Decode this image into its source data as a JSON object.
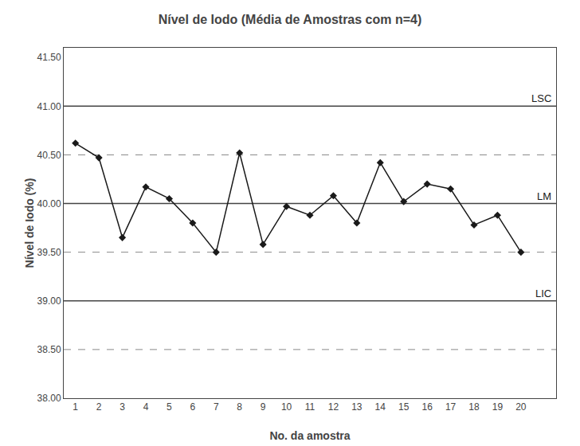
{
  "chart_data": {
    "type": "line",
    "title": "Nível de Iodo (Média de Amostras com n=4)",
    "xlabel": "No. da amostra",
    "ylabel": "Nível de Iodo (%)",
    "x": [
      1,
      2,
      3,
      4,
      5,
      6,
      7,
      8,
      9,
      10,
      11,
      12,
      13,
      14,
      15,
      16,
      17,
      18,
      19,
      20
    ],
    "values": [
      40.62,
      40.47,
      39.65,
      40.17,
      40.05,
      39.8,
      39.5,
      40.52,
      39.58,
      39.97,
      39.88,
      40.08,
      39.8,
      40.42,
      40.02,
      40.2,
      40.15,
      39.78,
      39.88,
      39.5
    ],
    "color": "#1a1a1a",
    "marker": "diamond",
    "line_style": "solid",
    "reference_lines": [
      {
        "value": 41.0,
        "label": "LSC",
        "color": "#444444",
        "line_style": "solid"
      },
      {
        "value": 40.0,
        "label": "LM",
        "color": "#444444",
        "line_style": "solid"
      },
      {
        "value": 39.0,
        "label": "LIC",
        "color": "#444444",
        "line_style": "solid"
      },
      {
        "value": 40.5,
        "color": "#888888",
        "line_style": "dashed"
      },
      {
        "value": 39.5,
        "color": "#888888",
        "line_style": "dashed"
      },
      {
        "value": 38.5,
        "color": "#888888",
        "line_style": "dashed"
      }
    ],
    "xlim": [
      0.5,
      21.5
    ],
    "xticks": [
      1,
      2,
      3,
      4,
      5,
      6,
      7,
      8,
      9,
      10,
      11,
      12,
      13,
      14,
      15,
      16,
      17,
      18,
      19,
      20
    ],
    "ylim": [
      38.0,
      41.6
    ],
    "yticks": [
      {
        "value": 38.0,
        "label": "38.00"
      },
      {
        "value": 38.5,
        "label": "38.50"
      },
      {
        "value": 39.0,
        "label": "39.00"
      },
      {
        "value": 39.5,
        "label": "39.50"
      },
      {
        "value": 40.0,
        "label": "40.00"
      },
      {
        "value": 40.5,
        "label": "40.50"
      },
      {
        "value": 41.0,
        "label": "41.00"
      },
      {
        "value": 41.5,
        "label": "41.50"
      }
    ],
    "grid": false
  }
}
